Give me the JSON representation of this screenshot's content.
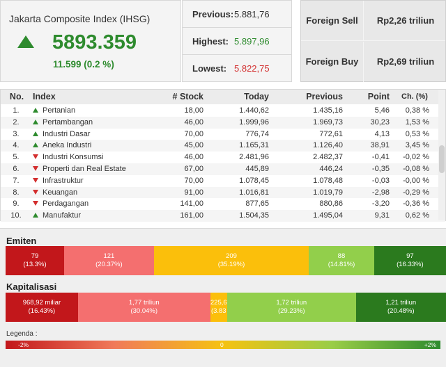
{
  "index": {
    "title": "Jakarta Composite Index (IHSG)",
    "value": "5893.359",
    "change": "11.599 (0.2 %)",
    "direction_icon": "triangle-up-icon"
  },
  "stats": {
    "previous_label": "Previous:",
    "previous_value": "5.881,76",
    "highest_label": "Highest:",
    "highest_value": "5.897,96",
    "lowest_label": "Lowest:",
    "lowest_value": "5.822,75"
  },
  "foreign": {
    "sell_label": "Foreign Sell",
    "sell_value": "Rp2,26 triliun",
    "buy_label": "Foreign Buy",
    "buy_value": "Rp2,69 triliun"
  },
  "table": {
    "headers": {
      "no": "No.",
      "index": "Index",
      "stock": "# Stock",
      "today": "Today",
      "previous": "Previous",
      "point": "Point",
      "change": "Ch. (%)"
    },
    "rows": [
      {
        "no": "1.",
        "index": "Pertanian",
        "dir": "up",
        "stock": "18,00",
        "today": "1.440,62",
        "previous": "1.435,16",
        "point": "5,46",
        "change": "0,38 %"
      },
      {
        "no": "2.",
        "index": "Pertambangan",
        "dir": "up",
        "stock": "46,00",
        "today": "1.999,96",
        "previous": "1.969,73",
        "point": "30,23",
        "change": "1,53 %"
      },
      {
        "no": "3.",
        "index": "Industri Dasar",
        "dir": "up",
        "stock": "70,00",
        "today": "776,74",
        "previous": "772,61",
        "point": "4,13",
        "change": "0,53 %"
      },
      {
        "no": "4.",
        "index": "Aneka Industri",
        "dir": "up",
        "stock": "45,00",
        "today": "1.165,31",
        "previous": "1.126,40",
        "point": "38,91",
        "change": "3,45 %"
      },
      {
        "no": "5.",
        "index": "Industri Konsumsi",
        "dir": "down",
        "stock": "46,00",
        "today": "2.481,96",
        "previous": "2.482,37",
        "point": "-0,41",
        "change": "-0,02 %"
      },
      {
        "no": "6.",
        "index": "Properti dan Real Estate",
        "dir": "down",
        "stock": "67,00",
        "today": "445,89",
        "previous": "446,24",
        "point": "-0,35",
        "change": "-0,08 %"
      },
      {
        "no": "7.",
        "index": "Infrastruktur",
        "dir": "down",
        "stock": "70,00",
        "today": "1.078,45",
        "previous": "1.078,48",
        "point": "-0,03",
        "change": "-0,00 %"
      },
      {
        "no": "8.",
        "index": "Keuangan",
        "dir": "down",
        "stock": "91,00",
        "today": "1.016,81",
        "previous": "1.019,79",
        "point": "-2,98",
        "change": "-0,29 %"
      },
      {
        "no": "9.",
        "index": "Perdagangan",
        "dir": "down",
        "stock": "141,00",
        "today": "877,65",
        "previous": "880,86",
        "point": "-3,20",
        "change": "-0,36 %"
      },
      {
        "no": "10.",
        "index": "Manufaktur",
        "dir": "up",
        "stock": "161,00",
        "today": "1.504,35",
        "previous": "1.495,04",
        "point": "9,31",
        "change": "0,62 %"
      }
    ]
  },
  "emiten": {
    "title": "Emiten",
    "segments": [
      {
        "value": "79",
        "pct": "(13.3%)",
        "share": 13.3,
        "color": "#c2171b"
      },
      {
        "value": "121",
        "pct": "(20.37%)",
        "share": 20.37,
        "color": "#f46f6f"
      },
      {
        "value": "209",
        "pct": "(35.19%)",
        "share": 35.19,
        "color": "#fbbf0b"
      },
      {
        "value": "88",
        "pct": "(14.81%)",
        "share": 14.81,
        "color": "#92cf4b"
      },
      {
        "value": "97",
        "pct": "(16.33%)",
        "share": 16.33,
        "color": "#2b7a1e"
      }
    ]
  },
  "kapitalisasi": {
    "title": "Kapitalisasi",
    "segments": [
      {
        "value": "968,92 miliar",
        "pct": "(16.43%)",
        "share": 16.43,
        "color": "#c2171b"
      },
      {
        "value": "1,77 triliun",
        "pct": "(30.04%)",
        "share": 30.04,
        "color": "#f46f6f"
      },
      {
        "value": "225,6",
        "pct": "(3.83",
        "share": 3.83,
        "color": "#fbbf0b"
      },
      {
        "value": "1,72 triliun",
        "pct": "(29.23%)",
        "share": 29.23,
        "color": "#92cf4b"
      },
      {
        "value": "1,21 triliun",
        "pct": "(20.48%)",
        "share": 20.48,
        "color": "#2b7a1e"
      }
    ]
  },
  "legend": {
    "title": "Legenda :",
    "min": "-2%",
    "mid": "0",
    "max": "+2%"
  }
}
